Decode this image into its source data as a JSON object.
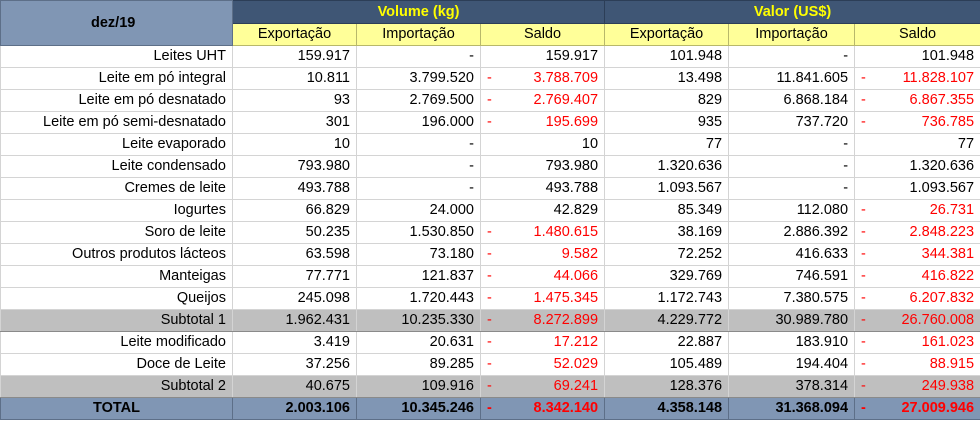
{
  "header": {
    "period": "dez/19",
    "groups": [
      "Volume (kg)",
      "Valor (US$)"
    ],
    "columns": [
      "Exportação",
      "Importação",
      "Saldo",
      "Exportação",
      "Importação",
      "Saldo"
    ]
  },
  "rows": [
    {
      "label": "Leites UHT",
      "type": "item",
      "vals": [
        "159.917",
        "-",
        "159.917",
        "101.948",
        "-",
        "101.948"
      ],
      "neg": [
        false,
        false
      ]
    },
    {
      "label": "Leite em pó integral",
      "type": "item",
      "vals": [
        "10.811",
        "3.799.520",
        "3.788.709",
        "13.498",
        "11.841.605",
        "11.828.107"
      ],
      "neg": [
        true,
        true
      ]
    },
    {
      "label": "Leite em pó desnatado",
      "type": "item",
      "vals": [
        "93",
        "2.769.500",
        "2.769.407",
        "829",
        "6.868.184",
        "6.867.355"
      ],
      "neg": [
        true,
        true
      ]
    },
    {
      "label": "Leite em pó semi-desnatado",
      "type": "item",
      "vals": [
        "301",
        "196.000",
        "195.699",
        "935",
        "737.720",
        "736.785"
      ],
      "neg": [
        true,
        true
      ]
    },
    {
      "label": "Leite evaporado",
      "type": "item",
      "vals": [
        "10",
        "-",
        "10",
        "77",
        "-",
        "77"
      ],
      "neg": [
        false,
        false
      ]
    },
    {
      "label": "Leite condensado",
      "type": "item",
      "vals": [
        "793.980",
        "-",
        "793.980",
        "1.320.636",
        "-",
        "1.320.636"
      ],
      "neg": [
        false,
        false
      ]
    },
    {
      "label": "Cremes de leite",
      "type": "item",
      "vals": [
        "493.788",
        "-",
        "493.788",
        "1.093.567",
        "-",
        "1.093.567"
      ],
      "neg": [
        false,
        false
      ]
    },
    {
      "label": "Iogurtes",
      "type": "item",
      "vals": [
        "66.829",
        "24.000",
        "42.829",
        "85.349",
        "112.080",
        "26.731"
      ],
      "neg": [
        false,
        true
      ]
    },
    {
      "label": "Soro de leite",
      "type": "item",
      "vals": [
        "50.235",
        "1.530.850",
        "1.480.615",
        "38.169",
        "2.886.392",
        "2.848.223"
      ],
      "neg": [
        true,
        true
      ]
    },
    {
      "label": "Outros produtos lácteos",
      "type": "item",
      "vals": [
        "63.598",
        "73.180",
        "9.582",
        "72.252",
        "416.633",
        "344.381"
      ],
      "neg": [
        true,
        true
      ]
    },
    {
      "label": "Manteigas",
      "type": "item",
      "vals": [
        "77.771",
        "121.837",
        "44.066",
        "329.769",
        "746.591",
        "416.822"
      ],
      "neg": [
        true,
        true
      ]
    },
    {
      "label": "Queijos",
      "type": "item",
      "vals": [
        "245.098",
        "1.720.443",
        "1.475.345",
        "1.172.743",
        "7.380.575",
        "6.207.832"
      ],
      "neg": [
        true,
        true
      ]
    },
    {
      "label": "Subtotal 1",
      "type": "subtotal",
      "vals": [
        "1.962.431",
        "10.235.330",
        "8.272.899",
        "4.229.772",
        "30.989.780",
        "26.760.008"
      ],
      "neg": [
        true,
        true
      ]
    },
    {
      "label": "Leite modificado",
      "type": "item",
      "vals": [
        "3.419",
        "20.631",
        "17.212",
        "22.887",
        "183.910",
        "161.023"
      ],
      "neg": [
        true,
        true
      ]
    },
    {
      "label": "Doce de Leite",
      "type": "item",
      "vals": [
        "37.256",
        "89.285",
        "52.029",
        "105.489",
        "194.404",
        "88.915"
      ],
      "neg": [
        true,
        true
      ]
    },
    {
      "label": "Subtotal 2",
      "type": "subtotal",
      "vals": [
        "40.675",
        "109.916",
        "69.241",
        "128.376",
        "378.314",
        "249.938"
      ],
      "neg": [
        true,
        true
      ]
    },
    {
      "label": "TOTAL",
      "type": "total",
      "vals": [
        "2.003.106",
        "10.345.246",
        "8.342.140",
        "4.358.148",
        "31.368.094",
        "27.009.946"
      ],
      "neg": [
        true,
        true
      ]
    }
  ]
}
